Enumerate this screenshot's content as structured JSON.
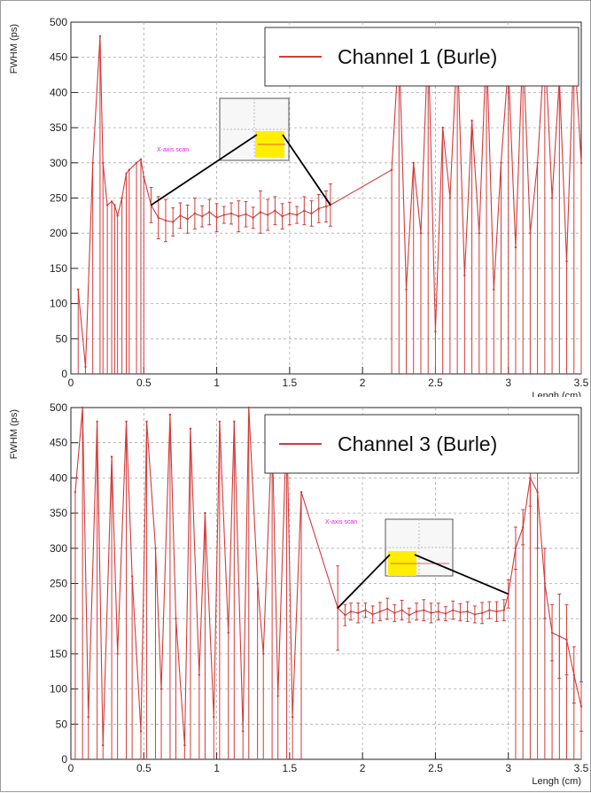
{
  "colors": {
    "series": "#d23a3a",
    "grid": "#aaaaaa",
    "highlight": "#ffee00",
    "scan_label": "#e020e0"
  },
  "chart_data": [
    {
      "type": "line",
      "title": "",
      "xlabel": "Lengh (cm)",
      "ylabel": "FWHM (ps)",
      "xlim": [
        0,
        3.5
      ],
      "ylim": [
        0,
        500
      ],
      "x_ticks": [
        "0",
        "0.5",
        "1",
        "1.5",
        "2",
        "2.5",
        "3",
        "3.5"
      ],
      "y_ticks": [
        "0",
        "50",
        "100",
        "150",
        "200",
        "250",
        "300",
        "350",
        "400",
        "450",
        "500"
      ],
      "grid": true,
      "legend": {
        "position": "top-right",
        "entries": [
          "Channel 1 (Burle)"
        ]
      },
      "annotation": {
        "text": "X-axis scan",
        "inset_range": [
          0.55,
          1.78
        ]
      },
      "series": [
        {
          "name": "Channel 1 (Burle)",
          "x": [
            0.05,
            0.1,
            0.15,
            0.2,
            0.22,
            0.25,
            0.28,
            0.3,
            0.32,
            0.35,
            0.38,
            0.4,
            0.45,
            0.48,
            0.5,
            0.55,
            0.6,
            0.65,
            0.7,
            0.75,
            0.8,
            0.85,
            0.9,
            0.95,
            1.0,
            1.05,
            1.1,
            1.15,
            1.2,
            1.25,
            1.3,
            1.35,
            1.4,
            1.45,
            1.5,
            1.55,
            1.6,
            1.65,
            1.7,
            1.75,
            1.78,
            2.2,
            2.25,
            2.3,
            2.35,
            2.4,
            2.45,
            2.5,
            2.55,
            2.6,
            2.65,
            2.7,
            2.75,
            2.8,
            2.85,
            2.9,
            2.95,
            3.0,
            3.05,
            3.1,
            3.15,
            3.2,
            3.25,
            3.3,
            3.35,
            3.4,
            3.45,
            3.5
          ],
          "y": [
            120,
            10,
            300,
            480,
            300,
            240,
            245,
            240,
            225,
            250,
            285,
            290,
            300,
            305,
            280,
            240,
            222,
            218,
            216,
            225,
            220,
            228,
            224,
            230,
            222,
            226,
            228,
            224,
            227,
            222,
            230,
            226,
            232,
            224,
            228,
            226,
            232,
            228,
            235,
            238,
            240,
            290,
            470,
            120,
            300,
            200,
            480,
            60,
            350,
            250,
            470,
            140,
            360,
            200,
            470,
            120,
            300,
            440,
            180,
            470,
            200,
            300,
            470,
            250,
            420,
            160,
            470,
            300
          ],
          "error": [
            null,
            null,
            null,
            null,
            null,
            null,
            null,
            null,
            null,
            null,
            null,
            null,
            null,
            null,
            null,
            25,
            30,
            30,
            20,
            18,
            20,
            22,
            15,
            18,
            20,
            12,
            15,
            22,
            18,
            15,
            30,
            22,
            20,
            18,
            16,
            12,
            20,
            18,
            20,
            22,
            30,
            null,
            null,
            null,
            null,
            null,
            null,
            null,
            null,
            null,
            null,
            null,
            null,
            null,
            null,
            null,
            null,
            null,
            null,
            null,
            null,
            null,
            null,
            null,
            null,
            null,
            null,
            null
          ]
        }
      ]
    },
    {
      "type": "line",
      "title": "",
      "xlabel": "Lengh (cm)",
      "ylabel": "FWHM (ps)",
      "xlim": [
        0,
        3.5
      ],
      "ylim": [
        0,
        500
      ],
      "x_ticks": [
        "0",
        "0.5",
        "1",
        "1.5",
        "2",
        "2.5",
        "3",
        "3.5"
      ],
      "y_ticks": [
        "0",
        "50",
        "100",
        "150",
        "200",
        "250",
        "300",
        "350",
        "400",
        "450",
        "500"
      ],
      "grid": true,
      "legend": {
        "position": "top-right",
        "entries": [
          "Channel 3 (Burle)"
        ]
      },
      "annotation": {
        "text": "X-axis scan",
        "inset_range": [
          1.83,
          3.0
        ]
      },
      "series": [
        {
          "name": "Channel 3 (Burle)",
          "x": [
            0.03,
            0.08,
            0.12,
            0.18,
            0.22,
            0.28,
            0.32,
            0.38,
            0.42,
            0.48,
            0.52,
            0.58,
            0.62,
            0.68,
            0.72,
            0.78,
            0.82,
            0.88,
            0.92,
            0.98,
            1.02,
            1.08,
            1.12,
            1.18,
            1.22,
            1.28,
            1.32,
            1.38,
            1.42,
            1.48,
            1.52,
            1.58,
            1.83,
            1.88,
            1.92,
            1.97,
            2.02,
            2.07,
            2.12,
            2.17,
            2.22,
            2.27,
            2.32,
            2.37,
            2.42,
            2.47,
            2.52,
            2.57,
            2.62,
            2.67,
            2.72,
            2.77,
            2.82,
            2.87,
            2.92,
            2.97,
            3.0,
            3.05,
            3.1,
            3.15,
            3.2,
            3.25,
            3.3,
            3.35,
            3.4,
            3.45,
            3.5
          ],
          "y": [
            380,
            500,
            60,
            480,
            20,
            430,
            150,
            480,
            260,
            40,
            480,
            300,
            100,
            490,
            200,
            20,
            470,
            120,
            350,
            60,
            480,
            180,
            480,
            40,
            500,
            250,
            150,
            470,
            90,
            480,
            60,
            380,
            215,
            205,
            210,
            208,
            212,
            206,
            210,
            214,
            208,
            212,
            205,
            210,
            212,
            208,
            210,
            207,
            212,
            209,
            210,
            206,
            208,
            212,
            210,
            212,
            235,
            300,
            330,
            400,
            380,
            250,
            180,
            175,
            170,
            120,
            75
          ],
          "error": [
            null,
            null,
            null,
            null,
            null,
            null,
            null,
            null,
            null,
            null,
            null,
            null,
            null,
            null,
            null,
            null,
            null,
            null,
            null,
            null,
            null,
            null,
            null,
            null,
            null,
            null,
            null,
            null,
            null,
            null,
            null,
            null,
            60,
            15,
            12,
            14,
            10,
            12,
            13,
            15,
            12,
            14,
            10,
            12,
            15,
            14,
            12,
            10,
            13,
            12,
            14,
            12,
            15,
            12,
            14,
            15,
            20,
            30,
            25,
            40,
            80,
            50,
            40,
            60,
            50,
            40,
            35
          ]
        }
      ]
    }
  ]
}
